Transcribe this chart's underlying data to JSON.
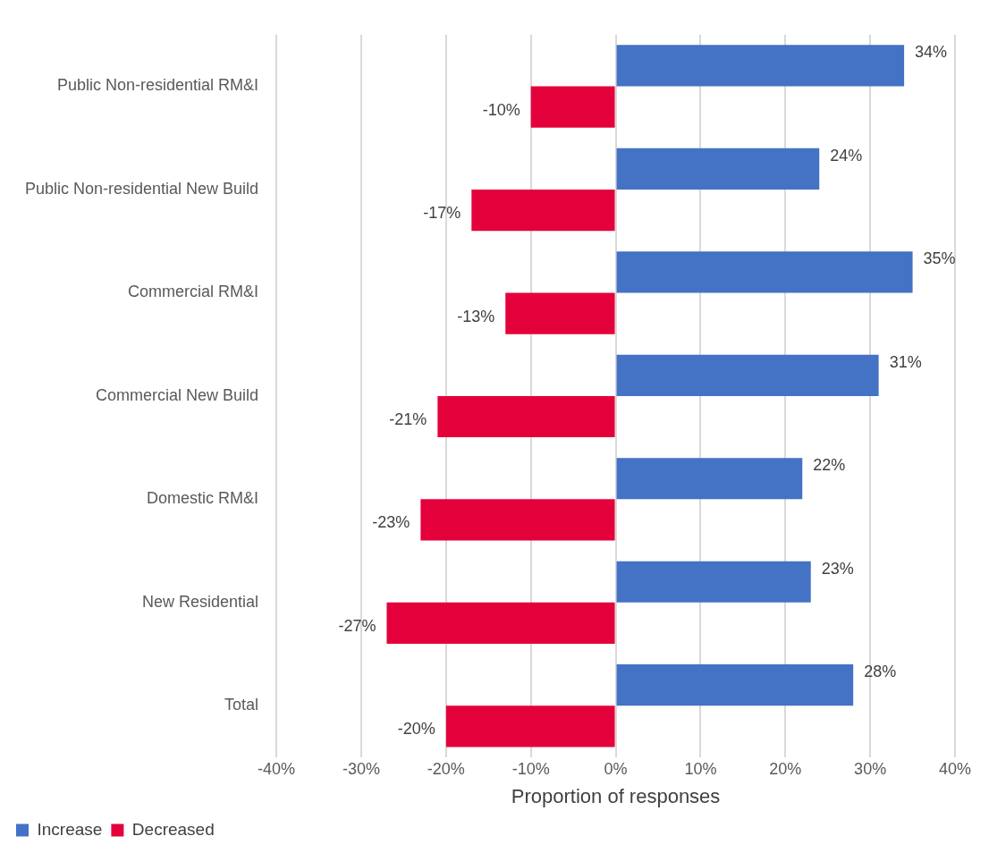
{
  "chart_data": {
    "type": "bar",
    "orientation": "horizontal",
    "xlabel": "Proportion of responses",
    "categories": [
      "Public Non-residential RM&I",
      "Public Non-residential New Build",
      "Commercial RM&I",
      "Commercial New Build",
      "Domestic RM&I",
      "New Residential",
      "Total"
    ],
    "series": [
      {
        "name": "Increase",
        "color": "#4472c4",
        "values": [
          34,
          24,
          35,
          31,
          22,
          23,
          28
        ],
        "value_labels": [
          "34%",
          "24%",
          "35%",
          "31%",
          "22%",
          "23%",
          "28%"
        ]
      },
      {
        "name": "Decreased",
        "color": "#e4003b",
        "values": [
          -10,
          -17,
          -13,
          -21,
          -23,
          -27,
          -20
        ],
        "value_labels": [
          "-10%",
          "-17%",
          "-13%",
          "-21%",
          "-23%",
          "-27%",
          "-20%"
        ]
      }
    ],
    "xlim": [
      -40,
      40
    ],
    "xticks": [
      {
        "value": -40,
        "label": "-40%"
      },
      {
        "value": -30,
        "label": "-30%"
      },
      {
        "value": -20,
        "label": "-20%"
      },
      {
        "value": -10,
        "label": "-10%"
      },
      {
        "value": 0,
        "label": "0%"
      },
      {
        "value": 10,
        "label": "10%"
      },
      {
        "value": 20,
        "label": "20%"
      },
      {
        "value": 30,
        "label": "30%"
      },
      {
        "value": 40,
        "label": "40%"
      }
    ],
    "grid": "x",
    "legend": "bottom left"
  }
}
